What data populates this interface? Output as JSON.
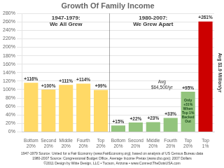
{
  "chart_data": {
    "type": "bar",
    "title": "Growth Of Family Income",
    "categories": [
      "Bottom\n20%",
      "Second\n20%",
      "Middle\n20%",
      "Fourth\n20%",
      "Top\n20%",
      "Bottom\n20%",
      "Second\n20%",
      "Middle\n20%",
      "Fourth\n20%",
      "Top\n20%",
      "Top\n1%"
    ],
    "values": [
      116,
      100,
      111,
      114,
      99,
      15,
      22,
      23,
      33,
      95,
      261
    ],
    "value_labels": [
      "+116%",
      "+100%",
      "+111%",
      "+114%",
      "+99%",
      "+15%",
      "+22%",
      "+23%",
      "+33%",
      "+95%",
      "+261%"
    ],
    "colors": [
      "#FFD966",
      "#FFD966",
      "#FFD966",
      "#FFD966",
      "#FFD966",
      "#93C47D",
      "#93C47D",
      "#93C47D",
      "#93C47D",
      "#93C47D",
      "#CC0000"
    ],
    "data_labels": true,
    "ylim": [
      0,
      280
    ],
    "yticks": [
      {
        "value": 0,
        "label": "0%"
      },
      {
        "value": 20,
        "label": "20%"
      },
      {
        "value": 40,
        "label": "40%"
      },
      {
        "value": 60,
        "label": "60%"
      },
      {
        "value": 80,
        "label": "80%"
      },
      {
        "value": 100,
        "label": "100%"
      },
      {
        "value": 120,
        "label": "120%"
      },
      {
        "value": 140,
        "label": "140%"
      },
      {
        "value": 160,
        "label": "160%"
      },
      {
        "value": 180,
        "label": "180%"
      },
      {
        "value": 200,
        "label": "200%"
      },
      {
        "value": 220,
        "label": "220%"
      },
      {
        "value": 240,
        "label": "240%"
      },
      {
        "value": 260,
        "label": "260%"
      },
      {
        "value": 280,
        "label": "280%"
      }
    ],
    "grid": true,
    "annotations": [
      "1947-1979:\nWe All Grew",
      "1980-2007:\nWe Grew Apart",
      "Avg\n$64,500/yr",
      "Only\n+31%\nWhen\nTop 1%\nBacked\nOut",
      "Avg $1.9 Million/yr",
      "1947-1979 Source: United for a Fair Economy (www.FairEconomy.org); based on analysis of US Census Bureau data",
      "1980-2007 Source: Congressional Budget Office, Average Income Pretax (www.cbo.gov); 2007 Dollars",
      "©2011 Design by Witte Design, LLC • Tucson, Arizona • www.ConnectTheDotsUSA.com"
    ]
  }
}
